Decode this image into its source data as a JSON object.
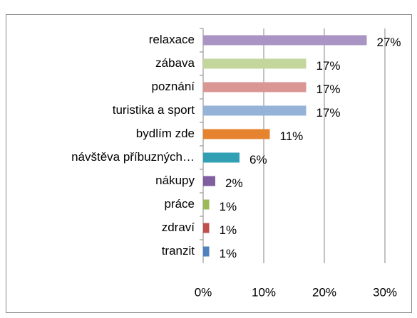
{
  "chart_data": {
    "type": "bar",
    "orientation": "horizontal",
    "categories": [
      "relaxace",
      "zábava",
      "poznání",
      "turistika a sport",
      "bydlím zde",
      "návštěva příbuzných…",
      "nákupy",
      "práce",
      "zdraví",
      "tranzit"
    ],
    "values": [
      27,
      17,
      17,
      17,
      11,
      6,
      2,
      1,
      1,
      1
    ],
    "value_labels": [
      "27%",
      "17%",
      "17%",
      "17%",
      "11%",
      "6%",
      "2%",
      "1%",
      "1%",
      "1%"
    ],
    "colors": [
      "#a994c4",
      "#c3d69b",
      "#d99694",
      "#95b3d7",
      "#e6832f",
      "#31a0b5",
      "#7f5fa0",
      "#9bbb59",
      "#c0504d",
      "#4f81bd"
    ],
    "xlim": [
      0,
      30
    ],
    "xticks": [
      {
        "value": 0,
        "label": "0%"
      },
      {
        "value": 10,
        "label": "10%"
      },
      {
        "value": 20,
        "label": "20%"
      },
      {
        "value": 30,
        "label": "30%"
      }
    ],
    "grid": true
  }
}
